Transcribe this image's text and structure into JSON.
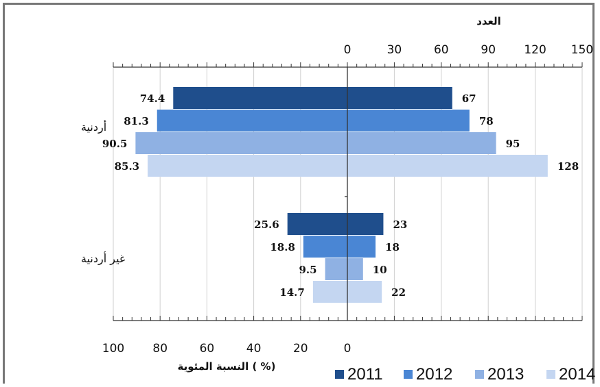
{
  "chart_data": {
    "type": "bar",
    "orientation": "horizontal-butterfly",
    "categories": [
      "أردنية",
      "غير أردنية"
    ],
    "series": [
      {
        "name": "2011",
        "color": "#1f4e8c",
        "left_values": [
          74.4,
          25.6
        ],
        "right_values": [
          67,
          23
        ],
        "left_labels": [
          "74.4",
          "25.6"
        ],
        "right_labels": [
          "67",
          "23"
        ]
      },
      {
        "name": "2012",
        "color": "#4a86d4",
        "left_values": [
          81.3,
          18.8
        ],
        "right_values": [
          78,
          18
        ],
        "left_labels": [
          "81.3",
          "18.8"
        ],
        "right_labels": [
          "78",
          "18"
        ]
      },
      {
        "name": "2013",
        "color": "#8fb1e3",
        "left_values": [
          90.5,
          9.5
        ],
        "right_values": [
          95,
          10
        ],
        "left_labels": [
          "90.5",
          "9.5"
        ],
        "right_labels": [
          "95",
          "10"
        ]
      },
      {
        "name": "2014",
        "color": "#c4d6f1",
        "left_values": [
          85.3,
          14.7
        ],
        "right_values": [
          128,
          22
        ],
        "left_labels": [
          "85.3",
          "14.7"
        ],
        "right_labels": [
          "128",
          "22"
        ]
      }
    ],
    "top_axis": {
      "title": "العدد",
      "ticks": [
        "0",
        "30",
        "60",
        "90",
        "120",
        "150"
      ],
      "range": [
        0,
        150
      ]
    },
    "bottom_axis": {
      "title": "النسبة المئوية ( %)",
      "ticks": [
        "100",
        "80",
        "60",
        "40",
        "20",
        "0"
      ],
      "range": [
        0,
        100
      ]
    },
    "legend_position": "bottom-right",
    "grid": true
  }
}
